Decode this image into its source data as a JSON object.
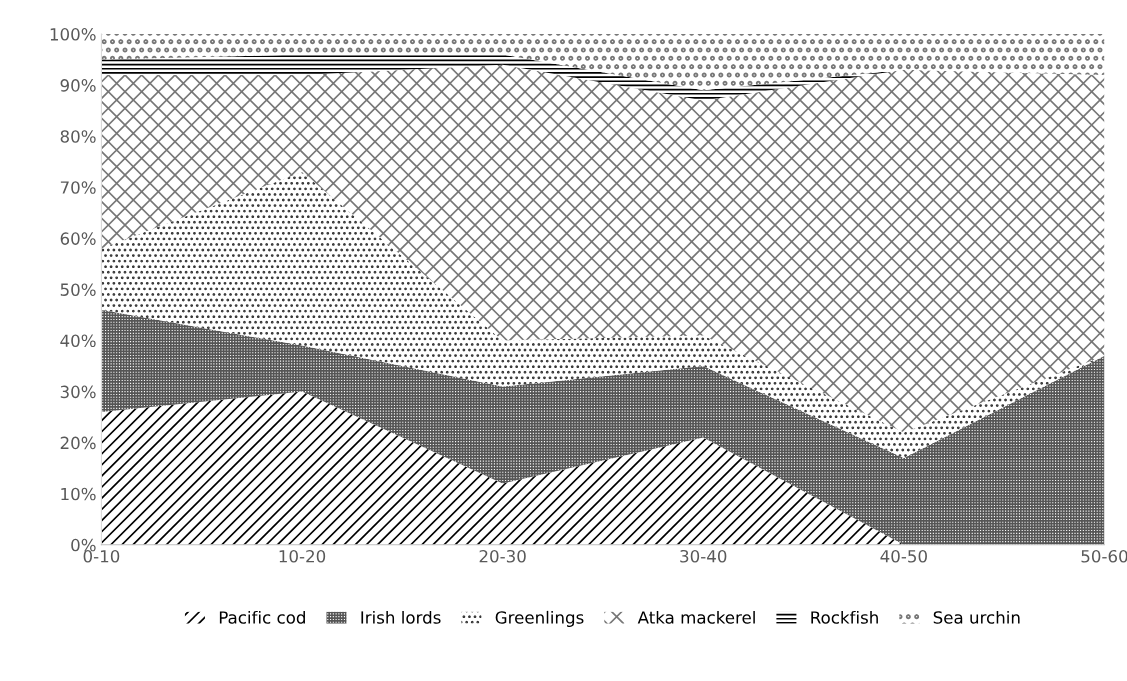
{
  "chart_data": {
    "type": "area",
    "stacked": true,
    "categories": [
      "0-10",
      "10-20",
      "20-30",
      "30-40",
      "40-50",
      "50-60"
    ],
    "series": [
      {
        "name": "Pacific cod",
        "color": "#000000",
        "values": [
          26,
          30,
          12,
          21,
          0,
          0
        ]
      },
      {
        "name": "Irish lords",
        "color": "#555555",
        "values": [
          20,
          9,
          19,
          14,
          17,
          37
        ]
      },
      {
        "name": "Greenlings",
        "color": "#333333",
        "values": [
          12,
          34,
          9,
          6,
          5,
          0
        ]
      },
      {
        "name": "Atka mackerel",
        "color": "#777777",
        "values": [
          34,
          19,
          54,
          46,
          71,
          55
        ]
      },
      {
        "name": "Rockfish",
        "color": "#000000",
        "values": [
          3,
          4,
          2,
          2,
          0,
          0
        ]
      },
      {
        "name": "Sea urchin",
        "color": "#777777",
        "values": [
          5,
          4,
          4,
          11,
          7,
          8
        ]
      }
    ],
    "ylim": [
      0,
      100
    ],
    "yticks": [
      {
        "value": 0,
        "label": "0%"
      },
      {
        "value": 10,
        "label": "10%"
      },
      {
        "value": 20,
        "label": "20%"
      },
      {
        "value": 30,
        "label": "30%"
      },
      {
        "value": 40,
        "label": "40%"
      },
      {
        "value": 50,
        "label": "50%"
      },
      {
        "value": 60,
        "label": "60%"
      },
      {
        "value": 70,
        "label": "70%"
      },
      {
        "value": 80,
        "label": "80%"
      },
      {
        "value": 90,
        "label": "90%"
      },
      {
        "value": 100,
        "label": "100%"
      }
    ],
    "legend": "bottom",
    "grid": false
  }
}
